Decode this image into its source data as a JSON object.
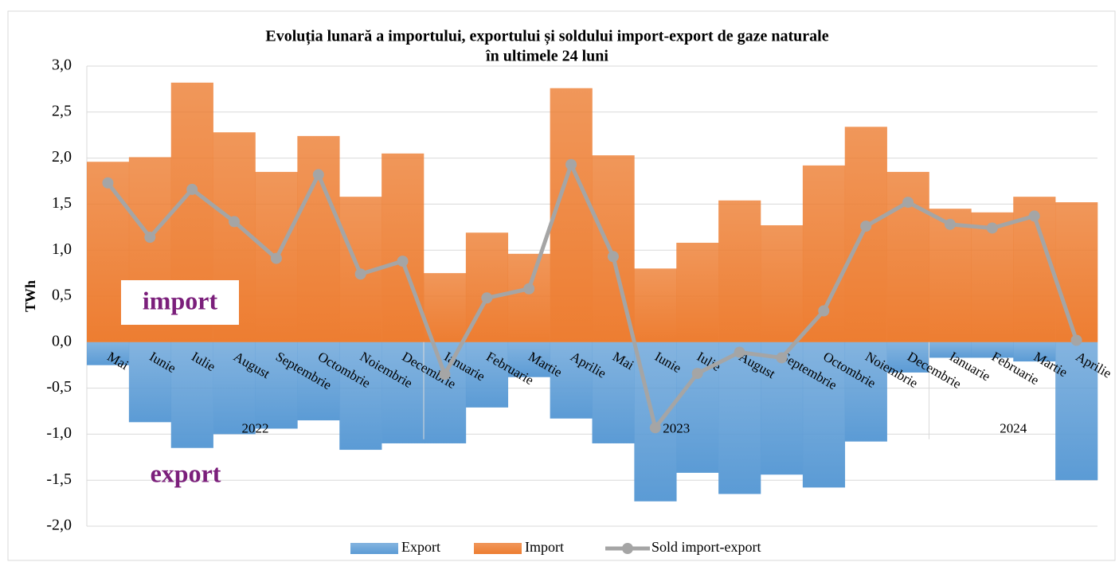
{
  "chart_data": {
    "type": "bar-line",
    "title": [
      "Evoluția lunară a importului, exportului și soldului import-export de gaze naturale",
      "în ultimele 24 luni"
    ],
    "y_label": "TWh",
    "annotations": [
      "import",
      "export"
    ],
    "categories": [
      "Mai",
      "Iunie",
      "Iulie",
      "August",
      "Septembrie",
      "Octombrie",
      "Noiembrie",
      "Decembrie",
      "Ianuarie",
      "Februarie",
      "Martie",
      "Aprilie",
      "Mai",
      "Iunie",
      "Iulie",
      "August",
      "Septembrie",
      "Octombrie",
      "Noiembrie",
      "Decembrie",
      "Ianuarie",
      "Februarie",
      "Martie",
      "Aprilie"
    ],
    "x_groups": [
      {
        "name": "2022",
        "count": 8
      },
      {
        "name": "2023",
        "count": 12
      },
      {
        "name": "2024",
        "count": 4
      }
    ],
    "series": [
      {
        "name": "Export",
        "type": "bar",
        "color": "#5b9bd5",
        "values": [
          -0.25,
          -0.87,
          -1.15,
          -1.0,
          -0.94,
          -0.85,
          -1.17,
          -1.1,
          -1.1,
          -0.71,
          -0.38,
          -0.83,
          -1.1,
          -1.73,
          -1.42,
          -1.65,
          -1.44,
          -1.58,
          -1.08,
          -0.33,
          -0.17,
          -0.17,
          -0.21,
          -1.5
        ]
      },
      {
        "name": "Import",
        "type": "bar",
        "color": "#ed7d31",
        "values": [
          1.96,
          2.01,
          2.82,
          2.28,
          1.85,
          2.24,
          1.58,
          2.05,
          0.75,
          1.19,
          0.96,
          2.76,
          2.03,
          0.8,
          1.08,
          1.54,
          1.27,
          1.92,
          2.34,
          1.85,
          1.45,
          1.41,
          1.58,
          1.52
        ]
      },
      {
        "name": "Sold import-export",
        "type": "line",
        "color": "#a5a5a5",
        "values": [
          1.73,
          1.14,
          1.66,
          1.31,
          0.91,
          1.82,
          0.74,
          0.88,
          -0.35,
          0.48,
          0.58,
          1.93,
          0.93,
          -0.93,
          -0.34,
          -0.11,
          -0.17,
          0.34,
          1.26,
          1.52,
          1.28,
          1.24,
          1.37,
          0.02
        ]
      }
    ],
    "ylim": [
      -2.0,
      3.0
    ],
    "yticks": [
      {
        "value": -2.0,
        "label": "-2,0"
      },
      {
        "value": -1.5,
        "label": "-1,5"
      },
      {
        "value": -1.0,
        "label": "-1,0"
      },
      {
        "value": -0.5,
        "label": "-0,5"
      },
      {
        "value": 0.0,
        "label": "0,0"
      },
      {
        "value": 0.5,
        "label": "0,5"
      },
      {
        "value": 1.0,
        "label": "1,0"
      },
      {
        "value": 1.5,
        "label": "1,5"
      },
      {
        "value": 2.0,
        "label": "2,0"
      },
      {
        "value": 2.5,
        "label": "2,5"
      },
      {
        "value": 3.0,
        "label": "3,0"
      }
    ],
    "grid": true,
    "legend": "bottom"
  }
}
